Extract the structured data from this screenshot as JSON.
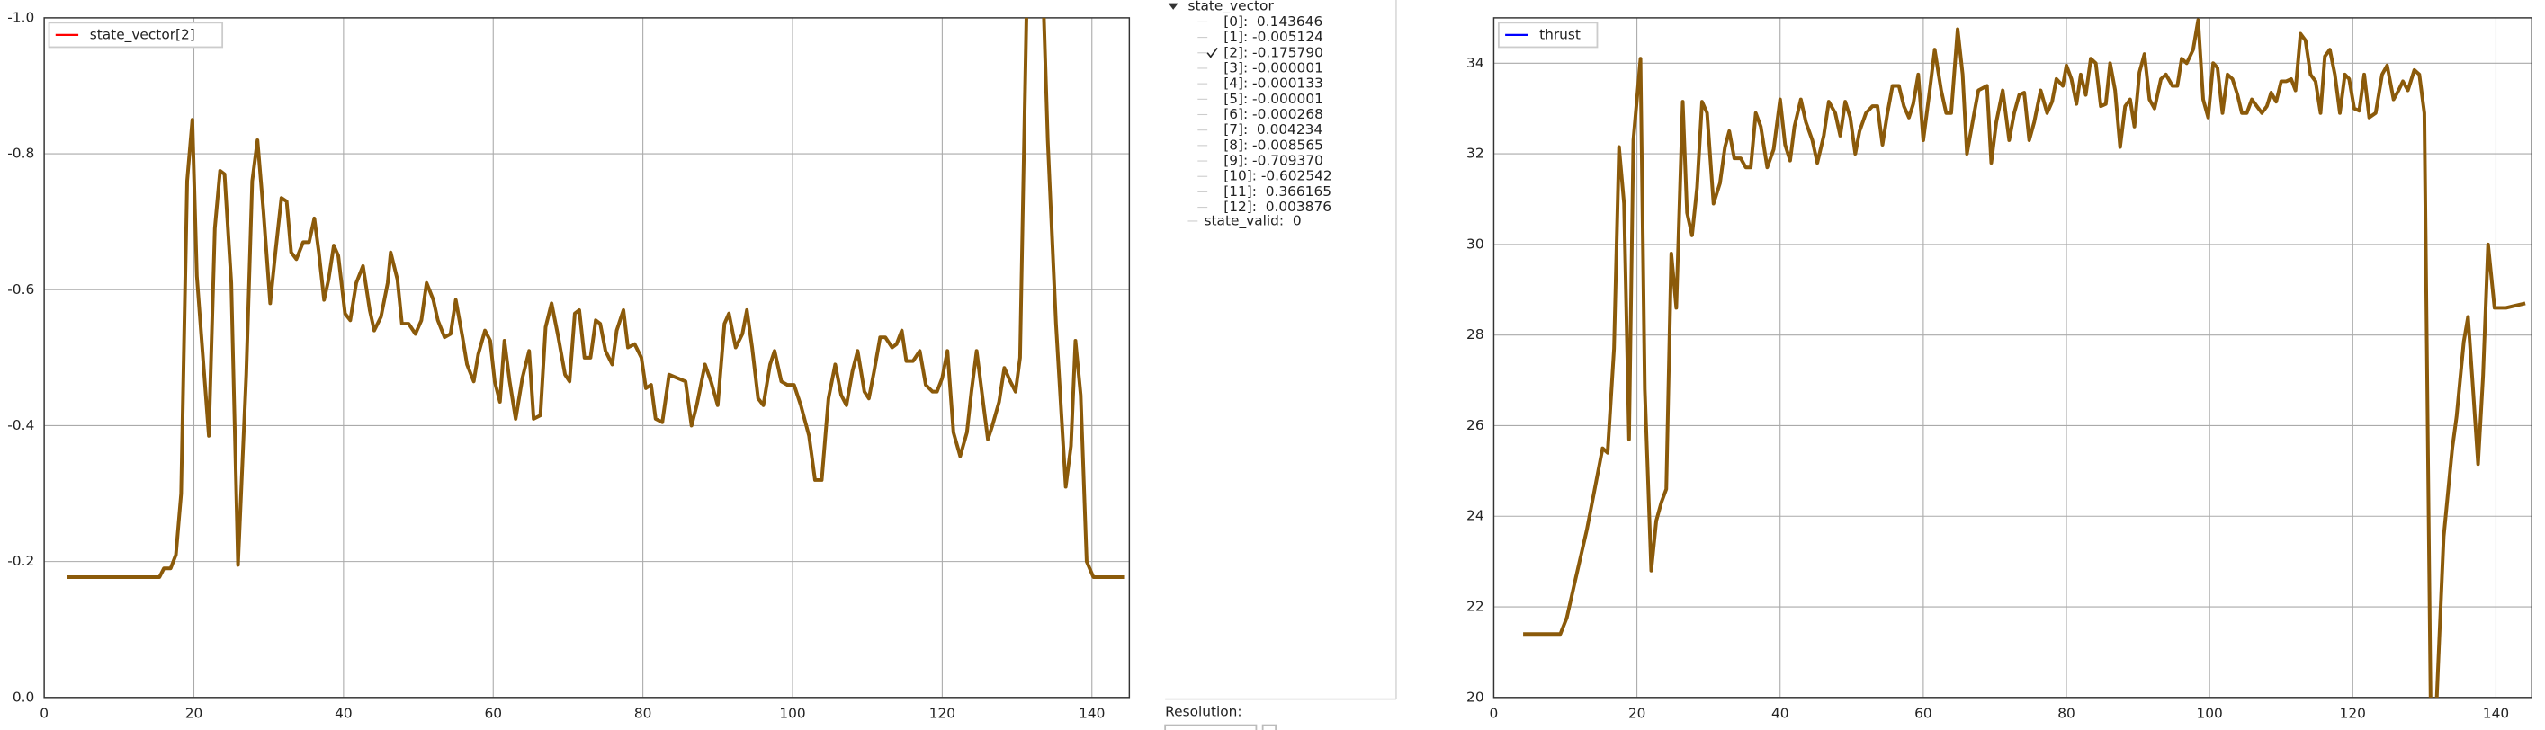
{
  "chart_data": [
    {
      "type": "line",
      "legend": "upper left",
      "grid": true,
      "legend_color": "#ff0000",
      "xlim": [
        0,
        145
      ],
      "xticks": [
        0,
        20,
        40,
        60,
        80,
        100,
        120,
        140
      ],
      "ylim": [
        0,
        -1
      ],
      "yticks": [
        {
          "value": 0,
          "label": "0.0"
        },
        -0.2,
        -0.4,
        -0.6,
        -0.8,
        {
          "value": -1,
          "label": "-1.0"
        }
      ],
      "x": [
        3,
        15.4,
        16,
        16.9,
        17.6,
        18.3,
        19.1,
        19.8,
        20.4,
        22,
        22.8,
        23.5,
        24.1,
        25,
        25.9,
        27,
        27.8,
        28.5,
        29.3,
        30.2,
        30.9,
        31.7,
        32.4,
        33,
        33.7,
        34.6,
        35.4,
        36.1,
        36.7,
        37.4,
        38,
        38.7,
        39.3,
        40.2,
        40.9,
        41.7,
        42.6,
        43.5,
        44.1,
        45,
        45.9,
        46.3,
        47.2,
        47.8,
        48.7,
        49.6,
        50.4,
        51.1,
        52,
        52.6,
        53.5,
        54.3,
        55,
        55.9,
        56.5,
        57.4,
        58,
        58.9,
        59.6,
        60.2,
        60.9,
        61.5,
        62.2,
        63,
        63.9,
        64.8,
        65.4,
        66.3,
        67,
        67.8,
        68.7,
        69.6,
        70.2,
        70.9,
        71.5,
        72.2,
        73,
        73.7,
        74.3,
        75,
        75.9,
        76.5,
        77.4,
        78,
        78.9,
        79.8,
        80.4,
        81.1,
        81.7,
        82.6,
        83.5,
        84.6,
        85.7,
        86.5,
        87.2,
        88.3,
        89.1,
        90,
        90.9,
        91.5,
        92.4,
        93.3,
        93.9,
        94.6,
        95.4,
        96.1,
        97,
        97.6,
        98.5,
        99.3,
        100.2,
        101.1,
        102.2,
        103,
        103.9,
        104.8,
        105.7,
        106.5,
        107.2,
        108,
        108.7,
        109.6,
        110.2,
        110.9,
        111.7,
        112.4,
        113.3,
        113.9,
        114.6,
        115.2,
        116.1,
        117,
        117.8,
        118.7,
        119.3,
        120,
        120.7,
        121.5,
        122.4,
        123.3,
        123.9,
        124.6,
        125.4,
        126.1,
        126.7,
        127.6,
        128.3,
        129.1,
        129.8,
        130.4,
        131.3,
        133.5,
        134.1,
        135.2,
        136.5,
        137.2,
        137.8,
        138.5,
        139.3,
        140.2,
        144.3
      ],
      "series": [
        {
          "name": "state_vector[2]",
          "color": "#8b5a0a",
          "values": [
            -0.177,
            -0.177,
            -0.19,
            -0.19,
            -0.21,
            -0.3,
            -0.76,
            -0.85,
            -0.62,
            -0.385,
            -0.69,
            -0.775,
            -0.77,
            -0.61,
            -0.195,
            -0.475,
            -0.76,
            -0.82,
            -0.715,
            -0.58,
            -0.655,
            -0.735,
            -0.73,
            -0.655,
            -0.645,
            -0.67,
            -0.67,
            -0.705,
            -0.655,
            -0.585,
            -0.615,
            -0.665,
            -0.65,
            -0.565,
            -0.555,
            -0.61,
            -0.635,
            -0.57,
            -0.54,
            -0.56,
            -0.61,
            -0.655,
            -0.615,
            -0.55,
            -0.55,
            -0.535,
            -0.555,
            -0.61,
            -0.585,
            -0.555,
            -0.53,
            -0.535,
            -0.585,
            -0.53,
            -0.49,
            -0.465,
            -0.505,
            -0.54,
            -0.525,
            -0.465,
            -0.435,
            -0.525,
            -0.465,
            -0.41,
            -0.47,
            -0.51,
            -0.41,
            -0.415,
            -0.545,
            -0.58,
            -0.53,
            -0.475,
            -0.465,
            -0.565,
            -0.57,
            -0.5,
            -0.5,
            -0.555,
            -0.55,
            -0.51,
            -0.49,
            -0.54,
            -0.57,
            -0.515,
            -0.52,
            -0.5,
            -0.455,
            -0.46,
            -0.41,
            -0.405,
            -0.475,
            -0.47,
            -0.465,
            -0.4,
            -0.43,
            -0.49,
            -0.465,
            -0.43,
            -0.55,
            -0.565,
            -0.515,
            -0.535,
            -0.57,
            -0.515,
            -0.44,
            -0.43,
            -0.49,
            -0.51,
            -0.465,
            -0.46,
            -0.46,
            -0.43,
            -0.385,
            -0.32,
            -0.32,
            -0.44,
            -0.49,
            -0.445,
            -0.43,
            -0.48,
            -0.51,
            -0.45,
            -0.44,
            -0.48,
            -0.53,
            -0.53,
            -0.515,
            -0.52,
            -0.54,
            -0.495,
            -0.495,
            -0.51,
            -0.46,
            -0.45,
            -0.45,
            -0.47,
            -0.51,
            -0.39,
            -0.355,
            -0.39,
            -0.45,
            -0.51,
            -0.44,
            -0.38,
            -0.4,
            -0.435,
            -0.485,
            -0.465,
            -0.45,
            -0.5,
            -1.03,
            -1.03,
            -0.82,
            -0.55,
            -0.31,
            -0.37,
            -0.525,
            -0.445,
            -0.2,
            -0.177,
            -0.177
          ]
        }
      ]
    },
    {
      "type": "line",
      "legend": "upper left",
      "grid": true,
      "legend_color": "#0000ff",
      "xlim": [
        0,
        145
      ],
      "xticks": [
        0,
        20,
        40,
        60,
        80,
        100,
        120,
        140
      ],
      "ylim": [
        20,
        35
      ],
      "yticks": [
        20,
        22,
        24,
        26,
        28,
        30,
        32,
        34
      ],
      "x": [
        4.1,
        9.3,
        10.2,
        11.4,
        13,
        15.2,
        15.9,
        16.8,
        17.5,
        18.2,
        18.9,
        19.5,
        20.5,
        21.1,
        22,
        22.7,
        23.4,
        24.1,
        24.8,
        25.5,
        26.4,
        27,
        27.7,
        28.4,
        29.1,
        29.8,
        30.7,
        31.6,
        32.3,
        32.9,
        33.6,
        34.5,
        35.2,
        35.9,
        36.6,
        37.3,
        38.2,
        39.1,
        40,
        40.7,
        41.4,
        42,
        42.9,
        43.6,
        44.5,
        45.2,
        46.1,
        46.8,
        47.7,
        48.4,
        49.1,
        49.8,
        50.5,
        51.1,
        52,
        52.9,
        53.6,
        54.3,
        55,
        55.7,
        56.6,
        57.3,
        58,
        58.6,
        59.3,
        60,
        60.9,
        61.6,
        62.5,
        63.2,
        63.9,
        64.8,
        65.5,
        66.1,
        67,
        67.7,
        68.9,
        69.5,
        70.2,
        71.1,
        72,
        72.7,
        73.4,
        74.1,
        74.8,
        75.5,
        76.4,
        77.3,
        78,
        78.6,
        79.5,
        80,
        80.7,
        81.4,
        82,
        82.7,
        83.4,
        84.1,
        84.8,
        85.5,
        86.1,
        86.8,
        87.5,
        88.2,
        88.9,
        89.5,
        90.2,
        90.9,
        91.6,
        92.3,
        93.2,
        93.9,
        94.8,
        95.5,
        96.1,
        96.8,
        97.7,
        98.4,
        99.1,
        99.8,
        100.5,
        101.1,
        101.8,
        102.5,
        103.2,
        103.9,
        104.5,
        105.2,
        105.9,
        106.6,
        107.3,
        108,
        108.6,
        109.3,
        110,
        110.7,
        111.4,
        112,
        112.7,
        113.4,
        114.1,
        114.8,
        115.5,
        116.1,
        116.8,
        117.5,
        118.2,
        118.9,
        119.5,
        120.2,
        120.9,
        121.6,
        122.3,
        123.2,
        124.1,
        124.8,
        125.7,
        126.4,
        127,
        127.7,
        128.6,
        129.3,
        130,
        130.9,
        131.6,
        132.7,
        133.9,
        134.5,
        135.5,
        136.1,
        136.8,
        137.5,
        138.2,
        138.9,
        139.8,
        141.4,
        144.1
      ],
      "series": [
        {
          "name": "thrust",
          "color": "#8b5a0a",
          "values": [
            21.4,
            21.4,
            21.76,
            22.6,
            23.7,
            25.5,
            25.4,
            27.7,
            32.15,
            30.9,
            25.7,
            32.3,
            34.1,
            26.8,
            22.8,
            23.9,
            24.3,
            24.6,
            29.8,
            28.6,
            33.15,
            30.7,
            30.2,
            31.25,
            33.15,
            32.9,
            30.9,
            31.35,
            32.15,
            32.5,
            31.9,
            31.9,
            31.7,
            31.7,
            32.9,
            32.6,
            31.7,
            32.1,
            33.2,
            32.2,
            31.85,
            32.6,
            33.2,
            32.7,
            32.3,
            31.8,
            32.4,
            33.15,
            32.9,
            32.4,
            33.15,
            32.8,
            32,
            32.5,
            32.9,
            33.05,
            33.05,
            32.2,
            32.9,
            33.5,
            33.5,
            33.05,
            32.8,
            33.1,
            33.75,
            32.3,
            33.4,
            34.3,
            33.4,
            32.9,
            32.9,
            34.75,
            33.75,
            32,
            32.8,
            33.4,
            33.5,
            31.8,
            32.7,
            33.4,
            32.3,
            32.9,
            33.3,
            33.35,
            32.3,
            32.7,
            33.4,
            32.9,
            33.15,
            33.65,
            33.5,
            33.95,
            33.65,
            33.1,
            33.75,
            33.3,
            34.1,
            34,
            33.05,
            33.1,
            34,
            33.4,
            32.15,
            33.05,
            33.2,
            32.6,
            33.8,
            34.2,
            33.2,
            33,
            33.65,
            33.75,
            33.5,
            33.5,
            34.1,
            34,
            34.3,
            34.95,
            33.2,
            32.8,
            34,
            33.9,
            32.9,
            33.75,
            33.65,
            33.3,
            32.9,
            32.9,
            33.2,
            33.05,
            32.9,
            33.05,
            33.35,
            33.15,
            33.6,
            33.6,
            33.65,
            33.4,
            34.65,
            34.5,
            33.75,
            33.6,
            32.9,
            34.15,
            34.3,
            33.75,
            32.9,
            33.75,
            33.65,
            33,
            32.95,
            33.75,
            32.8,
            32.9,
            33.75,
            33.95,
            33.2,
            33.4,
            33.6,
            33.4,
            33.85,
            33.75,
            32.9,
            19.5,
            19.5,
            23.55,
            25.5,
            26.2,
            27.85,
            28.4,
            26.8,
            25.15,
            27.1,
            30,
            28.6,
            28.6,
            28.7
          ]
        }
      ]
    }
  ],
  "tree": {
    "root": "state_vector",
    "items": [
      {
        "label": "[0]:  0.143646",
        "checked": false
      },
      {
        "label": "[1]: -0.005124",
        "checked": false
      },
      {
        "label": "[2]: -0.175790",
        "checked": true
      },
      {
        "label": "[3]: -0.000001",
        "checked": false
      },
      {
        "label": "[4]: -0.000133",
        "checked": false
      },
      {
        "label": "[5]: -0.000001",
        "checked": false
      },
      {
        "label": "[6]: -0.000268",
        "checked": false
      },
      {
        "label": "[7]:  0.004234",
        "checked": false
      },
      {
        "label": "[8]: -0.008565",
        "checked": false
      },
      {
        "label": "[9]: -0.709370",
        "checked": false
      },
      {
        "label": "[10]: -0.602542",
        "checked": false
      },
      {
        "label": "[11]:  0.366165",
        "checked": false
      },
      {
        "label": "[12]:  0.003876",
        "checked": false
      }
    ],
    "extra": "state_valid:  0"
  },
  "resolution_label": "Resolution:"
}
